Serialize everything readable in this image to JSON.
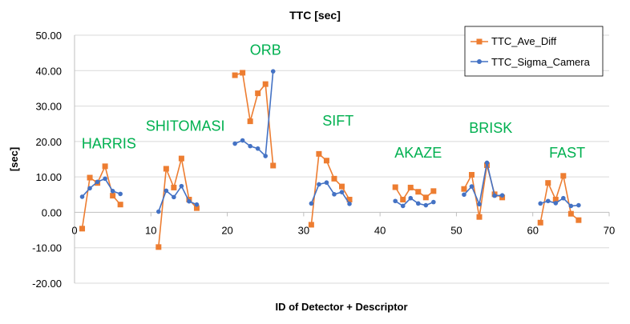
{
  "chart_data": {
    "type": "line",
    "title": "TTC [sec]",
    "xlabel": "ID of Detector + Descriptor",
    "ylabel": "[sec]",
    "xlim": [
      0,
      70
    ],
    "ylim": [
      -20,
      50
    ],
    "x_ticks": [
      0,
      10,
      20,
      30,
      40,
      50,
      60,
      70
    ],
    "y_ticks": [
      -20,
      -10,
      0,
      10,
      20,
      30,
      40,
      50
    ],
    "x_tick_labels": [
      "0",
      "10",
      "20",
      "30",
      "40",
      "50",
      "60",
      "70"
    ],
    "y_tick_labels": [
      "-20.00",
      "-10.00",
      "0.00",
      "10.00",
      "20.00",
      "30.00",
      "40.00",
      "50.00"
    ],
    "grid": "horizontal",
    "legend_position": "top-right",
    "group_labels": [
      {
        "text": "HARRIS",
        "x": 4.5,
        "y": 18
      },
      {
        "text": "SHITOMASI",
        "x": 14.5,
        "y": 23
      },
      {
        "text": "ORB",
        "x": 25,
        "y": 44.5
      },
      {
        "text": "SIFT",
        "x": 34.5,
        "y": 24.5
      },
      {
        "text": "AKAZE",
        "x": 45,
        "y": 15.5
      },
      {
        "text": "BRISK",
        "x": 54.5,
        "y": 22.5
      },
      {
        "text": "FAST",
        "x": 64.5,
        "y": 15.5
      }
    ],
    "series": [
      {
        "name": "TTC_Ave_Diff",
        "color": "#ed7d31",
        "marker": "square",
        "segments": [
          [
            [
              1,
              -4.6
            ],
            [
              2,
              9.8
            ],
            [
              3,
              8.3
            ],
            [
              4,
              13.0
            ],
            [
              5,
              4.7
            ],
            [
              6,
              2.2
            ]
          ],
          [
            [
              11,
              -9.8
            ],
            [
              12,
              12.3
            ],
            [
              13,
              7.0
            ],
            [
              14,
              15.2
            ],
            [
              15,
              3.6
            ],
            [
              16,
              1.2
            ]
          ],
          [
            [
              21,
              38.7
            ],
            [
              22,
              39.4
            ],
            [
              23,
              25.7
            ],
            [
              24,
              33.6
            ],
            [
              25,
              36.2
            ],
            [
              26,
              13.2
            ]
          ],
          [
            [
              31,
              -3.5
            ],
            [
              32,
              16.5
            ],
            [
              33,
              14.6
            ],
            [
              34,
              9.5
            ],
            [
              35,
              7.3
            ],
            [
              36,
              3.6
            ]
          ],
          [
            [
              42,
              7.1
            ],
            [
              43,
              3.6
            ],
            [
              44,
              7.0
            ],
            [
              45,
              5.8
            ],
            [
              46,
              4.2
            ],
            [
              47,
              6.0
            ]
          ],
          [
            [
              51,
              6.6
            ],
            [
              52,
              10.6
            ],
            [
              53,
              -1.3
            ],
            [
              54,
              13.3
            ],
            [
              55,
              5.1
            ],
            [
              56,
              4.2
            ]
          ],
          [
            [
              61,
              -2.9
            ],
            [
              62,
              8.3
            ],
            [
              63,
              3.6
            ],
            [
              64,
              10.3
            ],
            [
              65,
              -0.4
            ],
            [
              66,
              -2.2
            ]
          ]
        ]
      },
      {
        "name": "TTC_Sigma_Camera",
        "color": "#4472c4",
        "marker": "circle",
        "segments": [
          [
            [
              1,
              4.4
            ],
            [
              2,
              6.8
            ],
            [
              3,
              8.6
            ],
            [
              4,
              9.5
            ],
            [
              5,
              6.0
            ],
            [
              6,
              5.2
            ]
          ],
          [
            [
              11,
              0.2
            ],
            [
              12,
              6.1
            ],
            [
              13,
              4.3
            ],
            [
              14,
              7.4
            ],
            [
              15,
              3.1
            ],
            [
              16,
              2.2
            ]
          ],
          [
            [
              21,
              19.4
            ],
            [
              22,
              20.3
            ],
            [
              23,
              18.7
            ],
            [
              24,
              18.0
            ],
            [
              25,
              15.9
            ],
            [
              26,
              39.8
            ]
          ],
          [
            [
              31,
              2.5
            ],
            [
              32,
              7.9
            ],
            [
              33,
              8.4
            ],
            [
              34,
              5.1
            ],
            [
              35,
              5.7
            ],
            [
              36,
              2.4
            ]
          ],
          [
            [
              42,
              3.2
            ],
            [
              43,
              1.8
            ],
            [
              44,
              4.0
            ],
            [
              45,
              2.5
            ],
            [
              46,
              2.0
            ],
            [
              47,
              2.9
            ]
          ],
          [
            [
              51,
              5.0
            ],
            [
              52,
              7.3
            ],
            [
              53,
              2.3
            ],
            [
              54,
              14.0
            ],
            [
              55,
              4.7
            ],
            [
              56,
              4.8
            ]
          ],
          [
            [
              61,
              2.5
            ],
            [
              62,
              3.2
            ],
            [
              63,
              2.6
            ],
            [
              64,
              4.0
            ],
            [
              65,
              1.8
            ],
            [
              66,
              2.0
            ]
          ]
        ]
      }
    ],
    "colors": {
      "group_label": "#00b050",
      "gridline": "#d9d9d9",
      "axis": "#bfbfbf"
    }
  }
}
